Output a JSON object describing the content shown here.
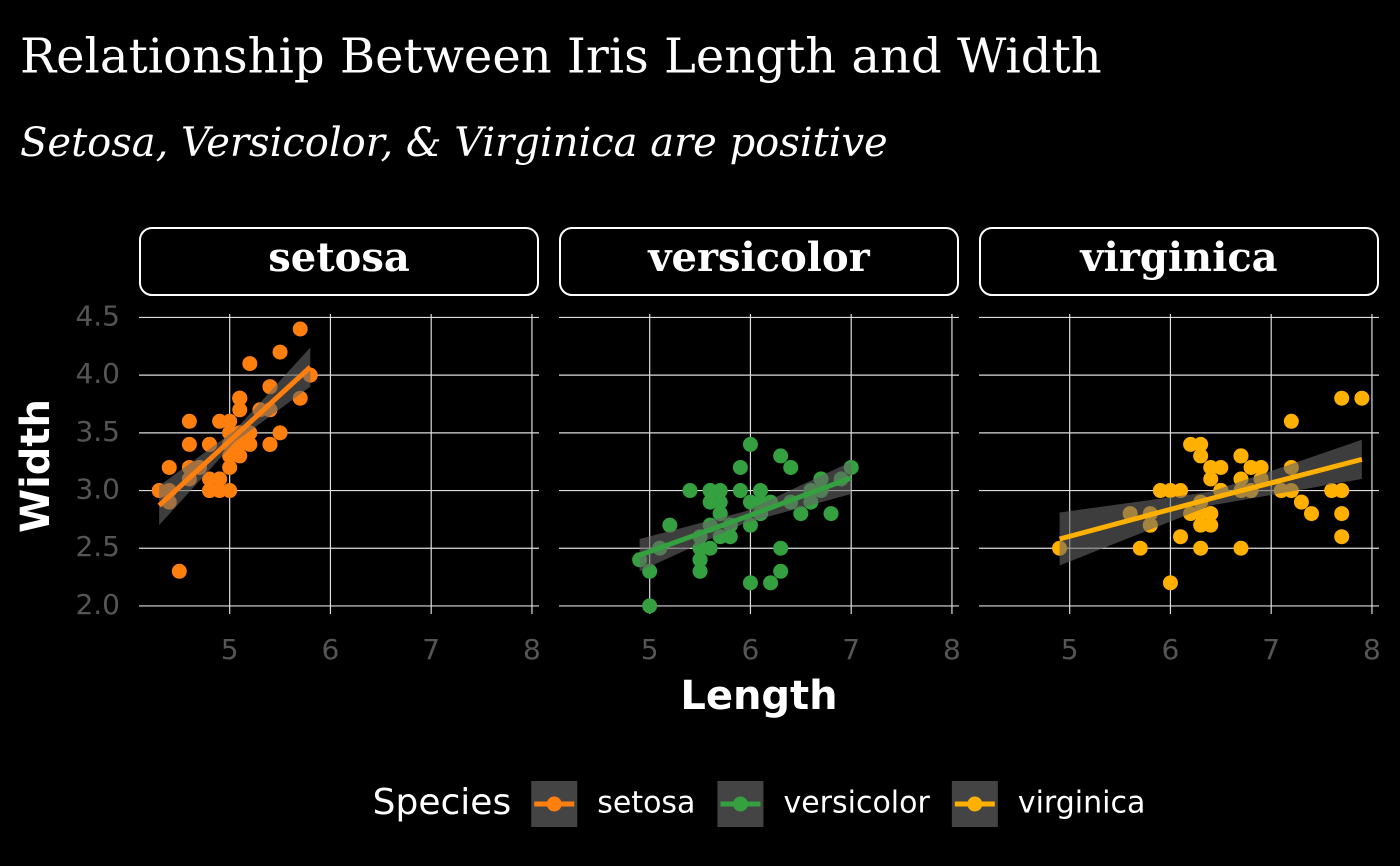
{
  "chart_data": {
    "type": "scatter",
    "title": "Relationship Between Iris Length and Width",
    "subtitle": "Setosa, Versicolor, & Virginica are positive",
    "x_label": "Length",
    "y_label": "Width",
    "legend_title": "Species",
    "legend_position": "bottom",
    "grid": true,
    "xlim": [
      4.1,
      8.07
    ],
    "ylim": [
      1.93,
      4.53
    ],
    "xticks": [
      5,
      6,
      7,
      8
    ],
    "yticks": [
      {
        "value": 2,
        "label": "2.0"
      },
      {
        "value": 2.5,
        "label": "2.5"
      },
      {
        "value": 3,
        "label": "3.0"
      },
      {
        "value": 3.5,
        "label": "3.5"
      },
      {
        "value": 4,
        "label": "4.0"
      },
      {
        "value": 4.5,
        "label": "4.5"
      }
    ],
    "series": [
      {
        "name": "setosa",
        "color": "#ff7f0e",
        "x": [
          5.1,
          4.9,
          4.7,
          4.6,
          5.0,
          5.4,
          4.6,
          5.0,
          4.4,
          4.9,
          5.4,
          4.8,
          4.8,
          4.3,
          5.8,
          5.7,
          5.4,
          5.1,
          5.7,
          5.1,
          5.4,
          5.1,
          4.6,
          5.1,
          4.8,
          5.0,
          5.0,
          5.2,
          5.2,
          4.7,
          4.8,
          5.4,
          5.2,
          5.5,
          4.9,
          5.0,
          5.5,
          4.9,
          4.4,
          5.1,
          5.0,
          4.5,
          4.4,
          5.0,
          5.1,
          4.8,
          5.1,
          4.6,
          5.3,
          5.0
        ],
        "values": [
          3.5,
          3.0,
          3.2,
          3.1,
          3.6,
          3.9,
          3.4,
          3.4,
          2.9,
          3.1,
          3.7,
          3.4,
          3.0,
          3.0,
          4.0,
          4.4,
          3.9,
          3.5,
          3.8,
          3.8,
          3.4,
          3.7,
          3.6,
          3.3,
          3.4,
          3.0,
          3.4,
          3.5,
          3.4,
          3.2,
          3.1,
          3.4,
          4.1,
          4.2,
          3.1,
          3.2,
          3.5,
          3.6,
          3.0,
          3.4,
          3.5,
          2.3,
          3.2,
          3.5,
          3.8,
          3.0,
          3.8,
          3.2,
          3.7,
          3.3
        ],
        "fit": {
          "x": [
            4.3,
            5.05,
            5.8
          ],
          "values": [
            2.87,
            3.47,
            4.07
          ],
          "lower": [
            2.7,
            3.42,
            3.9
          ],
          "upper": [
            3.04,
            3.52,
            4.24
          ]
        }
      },
      {
        "name": "versicolor",
        "color": "#35a040",
        "x": [
          7.0,
          6.4,
          6.9,
          5.5,
          6.5,
          5.7,
          6.3,
          4.9,
          6.6,
          5.2,
          5.0,
          5.9,
          6.0,
          6.1,
          5.6,
          6.7,
          5.6,
          5.8,
          6.2,
          5.6,
          5.9,
          6.1,
          6.3,
          6.1,
          6.4,
          6.6,
          6.8,
          6.7,
          6.0,
          5.7,
          5.5,
          5.5,
          5.8,
          6.0,
          5.4,
          6.0,
          6.7,
          6.3,
          5.6,
          5.5,
          5.5,
          6.1,
          5.8,
          5.0,
          5.6,
          5.7,
          5.7,
          6.2,
          5.1,
          5.7
        ],
        "values": [
          3.2,
          3.2,
          3.1,
          2.3,
          2.8,
          2.8,
          3.3,
          2.4,
          2.9,
          2.7,
          2.0,
          3.0,
          2.2,
          2.9,
          2.9,
          3.1,
          3.0,
          2.7,
          2.2,
          2.5,
          3.2,
          2.8,
          2.5,
          2.8,
          2.9,
          3.0,
          2.8,
          3.0,
          2.9,
          2.6,
          2.4,
          2.4,
          2.7,
          2.7,
          3.0,
          3.4,
          3.1,
          2.3,
          3.0,
          2.5,
          2.6,
          3.0,
          2.6,
          2.3,
          2.7,
          3.0,
          2.9,
          2.9,
          2.5,
          2.8
        ],
        "fit": {
          "x": [
            4.9,
            5.95,
            7.0
          ],
          "values": [
            2.44,
            2.77,
            3.11
          ],
          "lower": [
            2.3,
            2.72,
            2.97
          ],
          "upper": [
            2.58,
            2.82,
            3.25
          ]
        }
      },
      {
        "name": "virginica",
        "color": "#ffb000",
        "x": [
          6.3,
          5.8,
          7.1,
          6.3,
          6.5,
          7.6,
          4.9,
          7.3,
          6.7,
          7.2,
          6.5,
          6.4,
          6.8,
          5.7,
          5.8,
          6.4,
          6.5,
          7.7,
          7.7,
          6.0,
          6.9,
          5.6,
          7.7,
          6.3,
          6.7,
          7.2,
          6.2,
          6.1,
          6.4,
          7.2,
          7.4,
          7.9,
          6.4,
          6.3,
          6.1,
          7.7,
          6.3,
          6.4,
          6.0,
          6.9,
          6.7,
          6.9,
          5.8,
          6.8,
          6.7,
          6.7,
          6.3,
          6.5,
          6.2,
          5.9
        ],
        "values": [
          3.3,
          2.7,
          3.0,
          2.9,
          3.0,
          3.0,
          2.5,
          2.9,
          2.5,
          3.6,
          3.2,
          2.7,
          3.0,
          2.5,
          2.8,
          3.2,
          3.0,
          3.8,
          2.6,
          2.2,
          3.2,
          2.8,
          2.8,
          2.7,
          3.3,
          3.2,
          2.8,
          3.0,
          2.8,
          3.0,
          2.8,
          3.8,
          2.8,
          2.8,
          2.6,
          3.0,
          3.4,
          3.1,
          3.0,
          3.1,
          3.1,
          3.1,
          2.7,
          3.2,
          3.3,
          3.0,
          2.5,
          3.0,
          3.4,
          3.0
        ],
        "fit": {
          "x": [
            4.9,
            6.4,
            7.9
          ],
          "values": [
            2.58,
            2.93,
            3.27
          ],
          "lower": [
            2.35,
            2.87,
            3.1
          ],
          "upper": [
            2.81,
            2.99,
            3.44
          ]
        }
      }
    ]
  }
}
